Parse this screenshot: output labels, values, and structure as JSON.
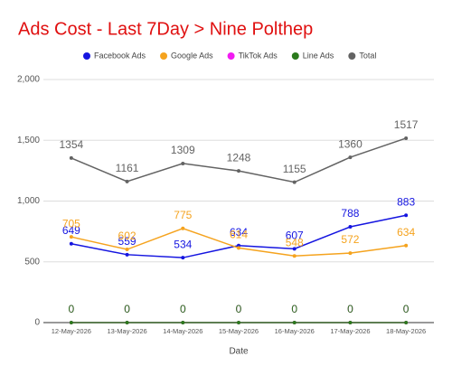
{
  "chart_data": {
    "type": "line",
    "title": "Ads Cost - Last 7Day > Nine Polthep",
    "x_label": "Date",
    "categories": [
      "12-May-2026",
      "13-May-2026",
      "14-May-2026",
      "15-May-2026",
      "16-May-2026",
      "17-May-2026",
      "18-May-2026"
    ],
    "series": [
      {
        "name": "Facebook Ads",
        "color": "#1515e0",
        "values": [
          649,
          559,
          534,
          634,
          607,
          788,
          883
        ]
      },
      {
        "name": "Google Ads",
        "color": "#f5a31e",
        "values": [
          705,
          602,
          775,
          614,
          548,
          572,
          634
        ]
      },
      {
        "name": "TikTok Ads",
        "color": "#f21bf2",
        "values": [
          0,
          0,
          0,
          0,
          0,
          0,
          0
        ]
      },
      {
        "name": "Line Ads",
        "color": "#2b7a1c",
        "values": [
          0,
          0,
          0,
          0,
          0,
          0,
          0
        ]
      },
      {
        "name": "Total",
        "color": "#636363",
        "values": [
          1354,
          1161,
          1309,
          1248,
          1155,
          1360,
          1517
        ]
      }
    ],
    "ylim": [
      0,
      2000
    ],
    "yticks": [
      0,
      500,
      {
        "value": 1000,
        "label": "1,000"
      },
      {
        "value": 1500,
        "label": "1,500"
      },
      {
        "value": 2000,
        "label": "2,000"
      }
    ],
    "grid": true
  }
}
